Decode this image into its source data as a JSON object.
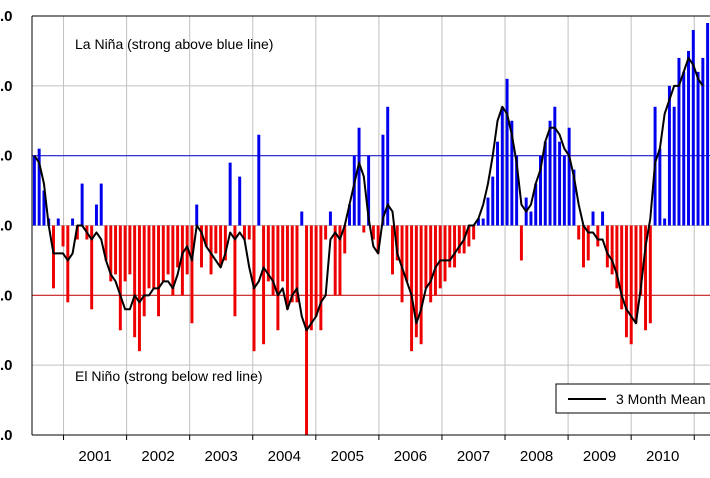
{
  "chart_data": {
    "type": "bar",
    "title": "",
    "xlabel": "",
    "ylabel": "",
    "x_start_year": 2000.5,
    "x_end_year": 2011.25,
    "ylim": [
      -3.0,
      3.0
    ],
    "y_ticks": [
      {
        "value": 3.0,
        "label": ".0"
      },
      {
        "value": 2.0,
        "label": ".0"
      },
      {
        "value": 1.0,
        "label": ".0"
      },
      {
        "value": 0.0,
        "label": ".0"
      },
      {
        "value": -1.0,
        "label": ".0"
      },
      {
        "value": -2.0,
        "label": ".0"
      },
      {
        "value": -3.0,
        "label": ".0"
      }
    ],
    "x_tick_labels": [
      "2001",
      "2002",
      "2003",
      "2004",
      "2005",
      "2006",
      "2007",
      "2008",
      "2009",
      "2010",
      "2"
    ],
    "grid": true,
    "colors": {
      "positive": "#0000ee",
      "negative": "#ee0000",
      "mean_line": "#000000",
      "la_nina_line": "#2222cc",
      "el_nino_line": "#cc2222",
      "grid": "#c0c0c0"
    },
    "threshold_lines": [
      {
        "name": "la-nina-threshold",
        "value": 1.0
      },
      {
        "name": "el-nino-threshold",
        "value": -1.0
      }
    ],
    "annotations": {
      "la_nina": "La Niña (strong above blue line)",
      "el_nino": "El Niño (strong below red line)"
    },
    "legend": {
      "placement": "bottom-right",
      "entries": [
        "3 Month Mean"
      ]
    },
    "series": [
      {
        "values": [
          1.0,
          1.1,
          0.5,
          0.1,
          -0.9,
          0.1,
          -0.3,
          -1.1,
          0.1,
          -0.2,
          0.6,
          -0.2,
          -1.2,
          0.3,
          0.6,
          -0.5,
          -0.8,
          -0.7,
          -1.5,
          -0.8,
          -0.7,
          -1.6,
          -1.8,
          -1.3,
          -0.9,
          -0.9,
          -1.3,
          -0.8,
          -0.7,
          -1.0,
          -0.6,
          -1.0,
          -0.7,
          -1.4,
          0.3,
          -0.6,
          -0.3,
          -0.7,
          -0.4,
          -0.6,
          -0.5,
          0.9,
          -1.3,
          0.7,
          -0.2,
          -0.2,
          -1.8,
          1.3,
          -1.7,
          -0.8,
          -1.0,
          -1.5,
          -0.8,
          -1.2,
          -1.1,
          -1.1,
          0.2,
          -3.0,
          -1.5,
          -1.3,
          -1.5,
          -0.2,
          0.2,
          -1.0,
          -1.0,
          -0.4,
          0.3,
          1.0,
          1.4,
          -0.1,
          1.0,
          -0.2,
          -0.4,
          1.3,
          1.7,
          -0.7,
          -0.5,
          -1.1,
          -0.8,
          -1.8,
          -1.6,
          -1.7,
          -0.9,
          -1.1,
          -1.0,
          -0.9,
          -0.8,
          -0.6,
          -0.6,
          -0.4,
          -0.4,
          -0.3,
          -0.2,
          0.1,
          0.1,
          0.4,
          0.7,
          1.2,
          1.7,
          2.1,
          1.5,
          1.0,
          -0.5,
          0.4,
          0.2,
          0.6,
          1.0,
          1.2,
          1.5,
          1.7,
          1.2,
          1.0,
          1.4,
          0.8,
          -0.2,
          -0.6,
          -0.5,
          0.2,
          -0.3,
          0.2,
          -0.6,
          -0.7,
          -0.9,
          -1.2,
          -1.6,
          -1.7,
          -1.4,
          -1.0,
          -1.5,
          -1.4,
          1.7,
          1.1,
          0.1,
          2.0,
          1.7,
          2.4,
          2.2,
          2.5,
          2.8,
          2.2,
          2.4,
          2.9
        ]
      }
    ],
    "mean_series": {
      "name": "3 Month Mean",
      "values": [
        1.0,
        0.9,
        0.6,
        0.0,
        -0.4,
        -0.4,
        -0.4,
        -0.5,
        -0.4,
        0.0,
        0.0,
        -0.1,
        -0.2,
        -0.1,
        -0.2,
        -0.5,
        -0.7,
        -0.8,
        -1.0,
        -1.2,
        -1.2,
        -1.0,
        -1.1,
        -1.0,
        -1.0,
        -0.9,
        -0.9,
        -0.8,
        -0.8,
        -0.9,
        -0.7,
        -0.4,
        -0.3,
        -0.5,
        0.0,
        -0.1,
        -0.3,
        -0.4,
        -0.5,
        -0.6,
        -0.4,
        -0.1,
        -0.2,
        -0.1,
        -0.2,
        -0.6,
        -0.9,
        -0.8,
        -0.6,
        -0.7,
        -0.8,
        -1.0,
        -0.9,
        -1.2,
        -1.0,
        -0.9,
        -1.3,
        -1.5,
        -1.4,
        -1.3,
        -1.1,
        -1.0,
        -0.2,
        -0.1,
        -0.2,
        0.0,
        0.3,
        0.6,
        0.9,
        0.7,
        0.1,
        -0.3,
        -0.4,
        0.1,
        0.3,
        0.2,
        -0.4,
        -0.6,
        -0.8,
        -1.0,
        -1.4,
        -1.2,
        -0.9,
        -0.8,
        -0.6,
        -0.5,
        -0.5,
        -0.5,
        -0.4,
        -0.3,
        -0.2,
        0.0,
        0.0,
        0.1,
        0.3,
        0.6,
        1.0,
        1.5,
        1.7,
        1.6,
        1.3,
        0.9,
        0.3,
        0.2,
        0.3,
        0.6,
        0.8,
        1.2,
        1.4,
        1.4,
        1.3,
        1.1,
        1.0,
        0.7,
        0.3,
        0.0,
        -0.1,
        -0.1,
        -0.2,
        -0.2,
        -0.4,
        -0.5,
        -0.7,
        -1.0,
        -1.2,
        -1.3,
        -1.4,
        -0.9,
        -0.3,
        0.1,
        0.9,
        1.1,
        1.6,
        1.8,
        2.0,
        2.0,
        2.2,
        2.4,
        2.3,
        2.1,
        2.0
      ]
    }
  }
}
